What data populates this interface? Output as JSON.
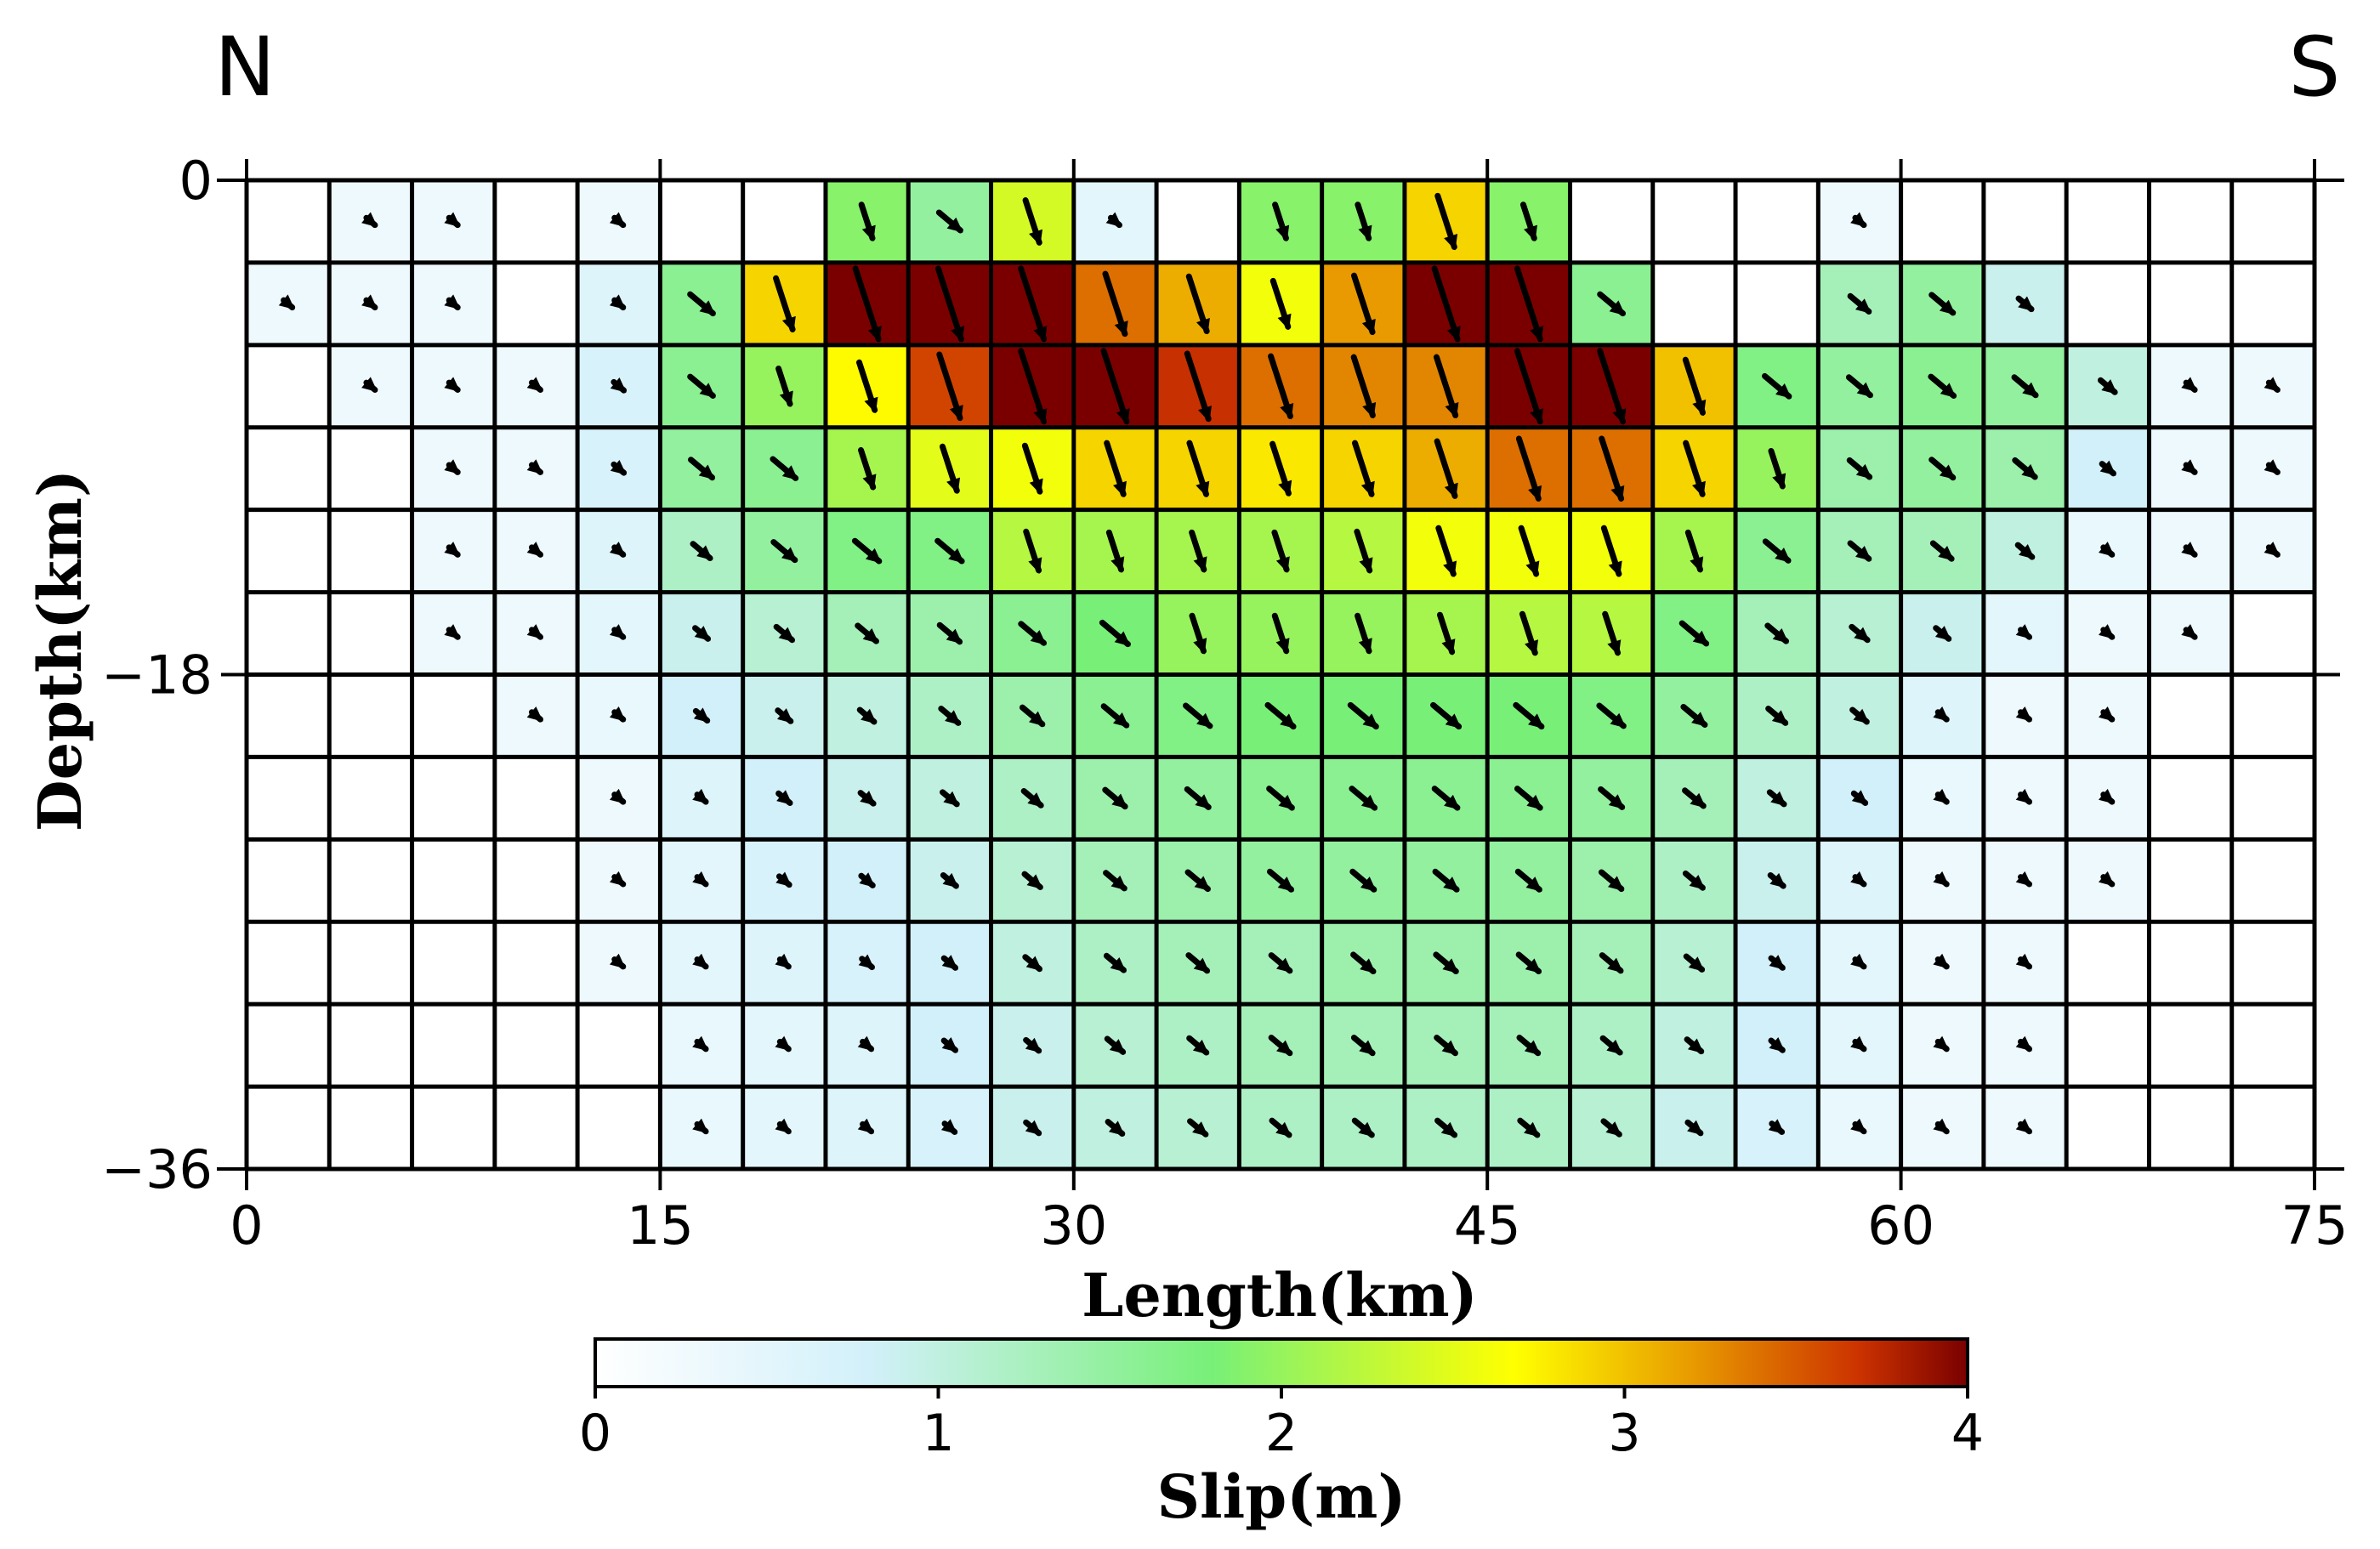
{
  "chart_data": {
    "type": "heatmap",
    "direction_left": "N",
    "direction_right": "S",
    "xlabel": "Length(km)",
    "ylabel": "Depth(km)",
    "xlim": [
      0,
      75
    ],
    "ylim": [
      -36,
      0
    ],
    "x_ticks": [
      "0",
      "15",
      "30",
      "45",
      "60",
      "75"
    ],
    "y_ticks": [
      "0",
      "−18",
      "−36"
    ],
    "x_tick_values": [
      0,
      15,
      30,
      45,
      60,
      75
    ],
    "y_tick_values": [
      0,
      -18,
      -36
    ],
    "grid_columns": 25,
    "grid_rows": 12,
    "colorbar": {
      "label": "Slip(m)",
      "range": [
        0,
        4
      ],
      "ticks": [
        "0",
        "1",
        "2",
        "3",
        "4"
      ],
      "tick_values": [
        0,
        1,
        2,
        3,
        4
      ],
      "colors": [
        "#ffffff",
        "#d2f0fa",
        "#78f078",
        "#ffff00",
        "#e89a00",
        "#cc3300",
        "#7a0000"
      ],
      "stops": [
        0,
        0.2,
        0.45,
        0.67,
        0.8,
        0.92,
        1.0
      ]
    },
    "slip_m": [
      [
        0,
        0.3,
        0.3,
        0,
        0.3,
        0,
        0,
        1.9,
        1.5,
        2.4,
        0.5,
        0,
        1.9,
        1.9,
        2.9,
        1.9,
        0,
        0,
        0,
        0.3,
        0,
        0,
        0,
        0,
        0
      ],
      [
        0.3,
        0.3,
        0.3,
        0,
        0.6,
        1.6,
        2.9,
        4.0,
        4.0,
        4.0,
        3.4,
        3.1,
        2.6,
        3.2,
        4.0,
        4.0,
        1.6,
        0,
        0,
        1.3,
        1.5,
        0.9,
        0,
        0,
        0
      ],
      [
        0,
        0.3,
        0.3,
        0.3,
        0.7,
        1.6,
        2.0,
        2.7,
        3.6,
        4.0,
        4.0,
        3.7,
        3.4,
        3.3,
        3.3,
        4.0,
        4.0,
        3.0,
        1.7,
        1.5,
        1.6,
        1.5,
        1.0,
        0.3,
        0.3
      ],
      [
        0,
        0,
        0.3,
        0.3,
        0.7,
        1.5,
        1.6,
        2.1,
        2.5,
        2.6,
        2.9,
        2.9,
        2.8,
        2.9,
        3.1,
        3.4,
        3.4,
        2.9,
        2.0,
        1.4,
        1.5,
        1.4,
        0.8,
        0.3,
        0.3
      ],
      [
        0,
        0,
        0.3,
        0.3,
        0.6,
        1.2,
        1.5,
        1.7,
        1.7,
        2.2,
        2.1,
        2.1,
        2.1,
        2.2,
        2.6,
        2.6,
        2.6,
        2.1,
        1.6,
        1.3,
        1.3,
        1.0,
        0.4,
        0.3,
        0.3
      ],
      [
        0,
        0,
        0.3,
        0.3,
        0.5,
        0.9,
        1.1,
        1.3,
        1.4,
        1.6,
        1.8,
        2.0,
        2.0,
        2.0,
        2.1,
        2.2,
        2.2,
        1.7,
        1.3,
        1.1,
        0.9,
        0.5,
        0.3,
        0.3,
        0
      ],
      [
        0,
        0,
        0,
        0.3,
        0.4,
        0.8,
        0.9,
        1.0,
        1.2,
        1.4,
        1.6,
        1.7,
        1.8,
        1.8,
        1.8,
        1.8,
        1.7,
        1.5,
        1.2,
        1.0,
        0.6,
        0.3,
        0.3,
        0,
        0
      ],
      [
        0,
        0,
        0,
        0,
        0.3,
        0.6,
        0.8,
        0.9,
        1.0,
        1.2,
        1.4,
        1.5,
        1.6,
        1.6,
        1.6,
        1.6,
        1.5,
        1.3,
        1.0,
        0.8,
        0.4,
        0.3,
        0.3,
        0,
        0
      ],
      [
        0,
        0,
        0,
        0,
        0.3,
        0.5,
        0.7,
        0.8,
        0.9,
        1.1,
        1.3,
        1.4,
        1.5,
        1.5,
        1.5,
        1.5,
        1.4,
        1.2,
        0.9,
        0.6,
        0.3,
        0.3,
        0.3,
        0,
        0
      ],
      [
        0,
        0,
        0,
        0,
        0.3,
        0.5,
        0.6,
        0.7,
        0.8,
        1.0,
        1.2,
        1.3,
        1.3,
        1.4,
        1.4,
        1.4,
        1.3,
        1.1,
        0.8,
        0.5,
        0.3,
        0.3,
        0,
        0,
        0
      ],
      [
        0,
        0,
        0,
        0,
        0,
        0.4,
        0.5,
        0.6,
        0.8,
        0.9,
        1.1,
        1.2,
        1.3,
        1.3,
        1.3,
        1.3,
        1.2,
        1.0,
        0.8,
        0.5,
        0.3,
        0.3,
        0,
        0,
        0
      ],
      [
        0,
        0,
        0,
        0,
        0,
        0.4,
        0.5,
        0.6,
        0.7,
        0.9,
        1.0,
        1.1,
        1.2,
        1.2,
        1.2,
        1.2,
        1.1,
        0.9,
        0.7,
        0.4,
        0.3,
        0.3,
        0,
        0,
        0
      ]
    ]
  }
}
